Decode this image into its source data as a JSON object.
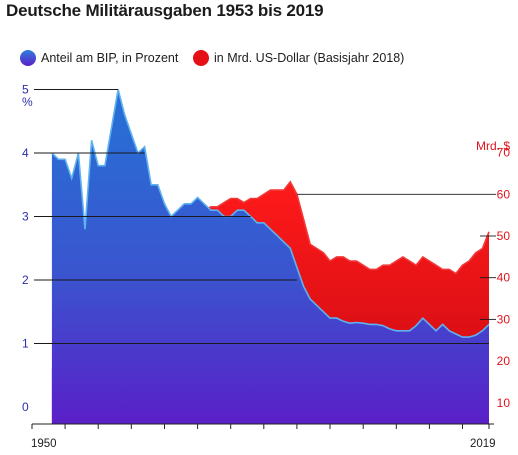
{
  "title": "Deutsche Militärausgaben 1953 bis 2019",
  "chart_data": {
    "type": "area",
    "title": "Deutsche Militärausgaben 1953 bis 2019",
    "legend_position": "top-left",
    "grid": false,
    "x": [
      1953,
      1954,
      1955,
      1956,
      1957,
      1958,
      1959,
      1960,
      1961,
      1962,
      1963,
      1964,
      1965,
      1966,
      1967,
      1968,
      1969,
      1970,
      1971,
      1972,
      1973,
      1974,
      1975,
      1976,
      1977,
      1978,
      1979,
      1980,
      1981,
      1982,
      1983,
      1984,
      1985,
      1986,
      1987,
      1988,
      1989,
      1990,
      1991,
      1992,
      1993,
      1994,
      1995,
      1996,
      1997,
      1998,
      1999,
      2000,
      2001,
      2002,
      2003,
      2004,
      2005,
      2006,
      2007,
      2008,
      2009,
      2010,
      2011,
      2012,
      2013,
      2014,
      2015,
      2016,
      2017,
      2018,
      2019
    ],
    "x_range": [
      1950,
      2019
    ],
    "x_tick_labels": [
      "1950",
      "2019"
    ],
    "series": [
      {
        "name": "Anteil am BIP, in Prozent",
        "axis": "left",
        "color": "#2d68cf",
        "unit_label": "%",
        "y_range": [
          0,
          5
        ],
        "y_tick_labels": [
          "0",
          "1",
          "2",
          "3",
          "4",
          "5"
        ],
        "values": [
          4.0,
          3.9,
          3.9,
          3.6,
          4.0,
          2.8,
          4.2,
          3.8,
          3.8,
          4.4,
          5.0,
          4.6,
          4.3,
          4.0,
          4.1,
          3.5,
          3.5,
          3.2,
          3.0,
          3.1,
          3.2,
          3.2,
          3.3,
          3.2,
          3.1,
          3.1,
          3.0,
          3.0,
          3.1,
          3.1,
          3.0,
          2.9,
          2.9,
          2.8,
          2.7,
          2.6,
          2.5,
          2.2,
          1.9,
          1.7,
          1.6,
          1.5,
          1.4,
          1.4,
          1.35,
          1.32,
          1.33,
          1.32,
          1.3,
          1.3,
          1.28,
          1.23,
          1.2,
          1.2,
          1.2,
          1.28,
          1.4,
          1.3,
          1.2,
          1.3,
          1.2,
          1.15,
          1.1,
          1.1,
          1.13,
          1.2,
          1.3
        ]
      },
      {
        "name": "in Mrd. US-Dollar (Basisjahr 2018)",
        "axis": "right",
        "color": "#e41015",
        "unit_label": "Mrd. $",
        "y_range": [
          0,
          70
        ],
        "y_tick_labels": [
          "10",
          "20",
          "30",
          "40",
          "50",
          "60",
          "70"
        ],
        "values": [
          18,
          18,
          20,
          19,
          24,
          18,
          29,
          31,
          33,
          40,
          47,
          45,
          44,
          44,
          46,
          40,
          45,
          46,
          50,
          52,
          54,
          54,
          55,
          56,
          57,
          57,
          58,
          59,
          59,
          58,
          59,
          59,
          60,
          61,
          61,
          61,
          63,
          60,
          54,
          48,
          47,
          46,
          44,
          45,
          45,
          44,
          44,
          43,
          42,
          42,
          43,
          43,
          44,
          45,
          44,
          43,
          45,
          44,
          43,
          42,
          42,
          41,
          43,
          44,
          46,
          47,
          51
        ]
      }
    ]
  }
}
